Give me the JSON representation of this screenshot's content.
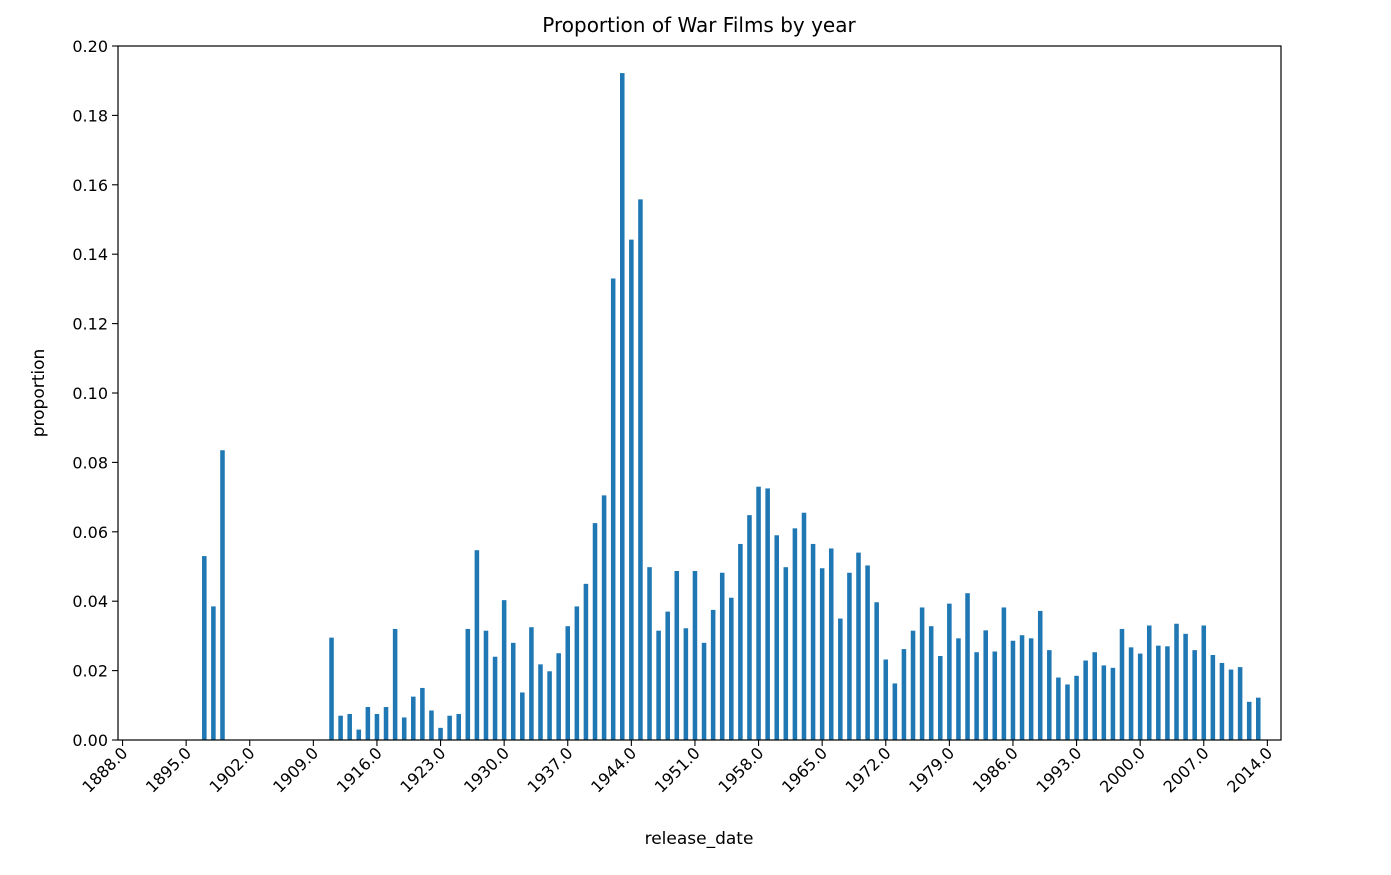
{
  "chart_data": {
    "type": "bar",
    "title": "Proportion of War Films by year",
    "xlabel": "release_date",
    "ylabel": "proportion",
    "x_tick_labels": [
      "1888.0",
      "1895.0",
      "1902.0",
      "1909.0",
      "1916.0",
      "1923.0",
      "1930.0",
      "1937.0",
      "1944.0",
      "1951.0",
      "1958.0",
      "1965.0",
      "1972.0",
      "1979.0",
      "1986.0",
      "1993.0",
      "2000.0",
      "2007.0",
      "2014.0"
    ],
    "y_tick_labels": [
      "0.00",
      "0.02",
      "0.04",
      "0.06",
      "0.08",
      "0.10",
      "0.12",
      "0.14",
      "0.16",
      "0.18",
      "0.20"
    ],
    "ylim": [
      0,
      0.2
    ],
    "xlim": [
      1887.5,
      2015.5
    ],
    "grid": false,
    "color": "#1f77b4",
    "x": [
      1897,
      1898,
      1899,
      1911,
      1912,
      1913,
      1914,
      1915,
      1916,
      1917,
      1918,
      1919,
      1920,
      1921,
      1922,
      1923,
      1924,
      1925,
      1926,
      1927,
      1928,
      1929,
      1930,
      1931,
      1932,
      1933,
      1934,
      1935,
      1936,
      1937,
      1938,
      1939,
      1940,
      1941,
      1942,
      1943,
      1944,
      1945,
      1946,
      1947,
      1948,
      1949,
      1950,
      1951,
      1952,
      1953,
      1954,
      1955,
      1956,
      1957,
      1958,
      1959,
      1960,
      1961,
      1962,
      1963,
      1964,
      1965,
      1966,
      1967,
      1968,
      1969,
      1970,
      1971,
      1972,
      1973,
      1974,
      1975,
      1976,
      1977,
      1978,
      1979,
      1980,
      1981,
      1982,
      1983,
      1984,
      1985,
      1986,
      1987,
      1988,
      1989,
      1990,
      1991,
      1992,
      1993,
      1994,
      1995,
      1996,
      1997,
      1998,
      1999,
      2000,
      2001,
      2002,
      2003,
      2004,
      2005,
      2006,
      2007,
      2008,
      2009,
      2010,
      2011,
      2012,
      2013,
      2014
    ],
    "values": [
      0.053,
      0.0385,
      0.0835,
      0.0295,
      0.007,
      0.0075,
      0.003,
      0.0095,
      0.0075,
      0.0095,
      0.032,
      0.0065,
      0.0125,
      0.015,
      0.0085,
      0.0035,
      0.007,
      0.0075,
      0.032,
      0.0547,
      0.0315,
      0.024,
      0.0403,
      0.028,
      0.0137,
      0.0325,
      0.0218,
      0.0198,
      0.025,
      0.0328,
      0.0385,
      0.045,
      0.0625,
      0.0705,
      0.133,
      0.1922,
      0.1442,
      0.1558,
      0.0498,
      0.0315,
      0.037,
      0.0487,
      0.0322,
      0.0487,
      0.028,
      0.0375,
      0.0482,
      0.041,
      0.0565,
      0.0648,
      0.073,
      0.0725,
      0.059,
      0.0498,
      0.061,
      0.0655,
      0.0565,
      0.0495,
      0.0552,
      0.035,
      0.0482,
      0.054,
      0.0503,
      0.0397,
      0.0232,
      0.0163,
      0.0262,
      0.0315,
      0.0382,
      0.0328,
      0.0242,
      0.0393,
      0.0293,
      0.0423,
      0.0253,
      0.0316,
      0.0255,
      0.0382,
      0.0286,
      0.0302,
      0.0293,
      0.0372,
      0.0259,
      0.018,
      0.016,
      0.0185,
      0.0229,
      0.0253,
      0.0215,
      0.0208,
      0.032,
      0.0267,
      0.0249,
      0.033,
      0.0272,
      0.027,
      0.0335,
      0.0306,
      0.0259,
      0.033,
      0.0245,
      0.0222,
      0.0203,
      0.021,
      0.011,
      0.0122,
      null
    ]
  }
}
